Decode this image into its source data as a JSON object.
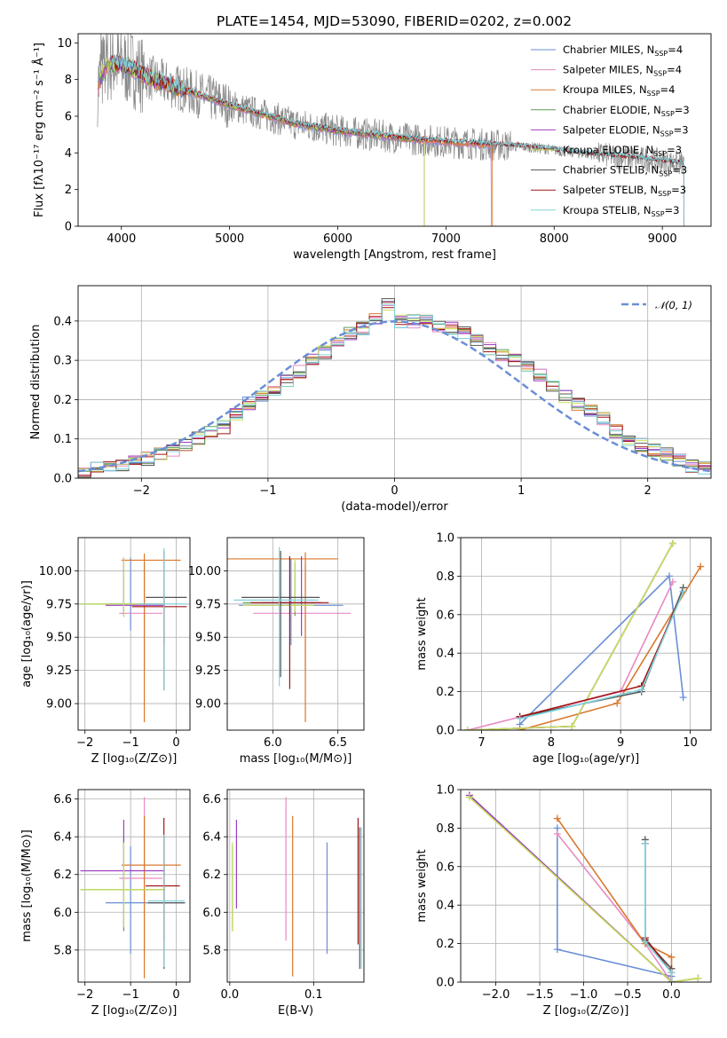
{
  "figure_title": "PLATE=1454, MJD=53090, FIBERID=0202, z=0.002",
  "colors": {
    "c1": "#6a8fd6",
    "c2": "#e78ac3",
    "c3": "#d9782d",
    "c4": "#5f9e57",
    "c5": "#9d3fc1",
    "c6": "#c9e05a",
    "c7": "#555555",
    "c8": "#a31414",
    "c9": "#7fd3dc",
    "data": "#888888"
  },
  "chart_data": [
    {
      "id": "spectrum",
      "type": "line",
      "title": "PLATE=1454, MJD=53090, FIBERID=0202, z=0.002",
      "xlabel": "wavelength [Angstrom, rest frame]",
      "ylabel": "Flux [fλ10⁻¹⁷ erg cm⁻² s⁻¹ Å⁻¹]",
      "xlim": [
        3600,
        9450
      ],
      "ylim": [
        0,
        10.5
      ],
      "xticks": [
        4000,
        5000,
        6000,
        7000,
        8000,
        9000
      ],
      "yticks": [
        0,
        2,
        4,
        6,
        8,
        10
      ],
      "legend_position": "top-right",
      "legend": [
        {
          "label": "Chabrier MILES, N",
          "sub": "SSP",
          "suffix": "=4",
          "color": "c1"
        },
        {
          "label": "Salpeter MILES, N",
          "sub": "SSP",
          "suffix": "=4",
          "color": "c2"
        },
        {
          "label": "Kroupa MILES, N",
          "sub": "SSP",
          "suffix": "=4",
          "color": "c3"
        },
        {
          "label": "Chabrier ELODIE, N",
          "sub": "SSP",
          "suffix": "=3",
          "color": "c4"
        },
        {
          "label": "Salpeter ELODIE, N",
          "sub": "SSP",
          "suffix": "=3",
          "color": "c5"
        },
        {
          "label": "Kroupa ELODIE, N",
          "sub": "SSP",
          "suffix": "=3",
          "color": "c6"
        },
        {
          "label": "Chabrier STELIB, N",
          "sub": "SSP",
          "suffix": "=3",
          "color": "c7"
        },
        {
          "label": "Salpeter STELIB, N",
          "sub": "SSP",
          "suffix": "=3",
          "color": "c8"
        },
        {
          "label": "Kroupa STELIB, N",
          "sub": "SSP",
          "suffix": "=3",
          "color": "c9"
        }
      ],
      "continuum": [
        [
          3780,
          7.6
        ],
        [
          3850,
          8.8
        ],
        [
          3950,
          8.9
        ],
        [
          4100,
          8.6
        ],
        [
          4300,
          8.0
        ],
        [
          4500,
          7.6
        ],
        [
          4800,
          7.0
        ],
        [
          5000,
          6.6
        ],
        [
          5300,
          6.1
        ],
        [
          5600,
          5.6
        ],
        [
          6000,
          5.2
        ],
        [
          6300,
          5.0
        ],
        [
          6600,
          4.8
        ],
        [
          7000,
          4.6
        ],
        [
          7400,
          4.45
        ],
        [
          7800,
          4.3
        ],
        [
          8200,
          4.0
        ],
        [
          8600,
          3.8
        ],
        [
          9000,
          3.55
        ],
        [
          9200,
          3.4
        ]
      ],
      "model_ranges": [
        {
          "color": "c1",
          "x": [
            3780,
            7420
          ]
        },
        {
          "color": "c2",
          "x": [
            3780,
            7420
          ]
        },
        {
          "color": "c3",
          "x": [
            3780,
            7430
          ]
        },
        {
          "color": "c4",
          "x": [
            3800,
            6800
          ]
        },
        {
          "color": "c5",
          "x": [
            3800,
            6800
          ]
        },
        {
          "color": "c6",
          "x": [
            3800,
            6800
          ]
        },
        {
          "color": "c7",
          "x": [
            3900,
            9200
          ]
        },
        {
          "color": "c8",
          "x": [
            3900,
            9200
          ]
        },
        {
          "color": "c9",
          "x": [
            3900,
            9200
          ]
        }
      ]
    },
    {
      "id": "residuals",
      "type": "step-histogram",
      "xlabel": "(data-model)/error",
      "ylabel": "Normed distribution",
      "xlim": [
        -2.5,
        2.5
      ],
      "ylim": [
        0,
        0.49
      ],
      "xticks": [
        -2,
        -1,
        0,
        1,
        2
      ],
      "yticks": [
        0.0,
        0.1,
        0.2,
        0.3,
        0.4
      ],
      "grid": true,
      "legend_position": "top-right",
      "gaussian_label": "𝒩(0, 1)",
      "profile": [
        0.02,
        0.025,
        0.03,
        0.035,
        0.04,
        0.05,
        0.06,
        0.07,
        0.085,
        0.1,
        0.12,
        0.13,
        0.16,
        0.19,
        0.21,
        0.22,
        0.25,
        0.27,
        0.3,
        0.32,
        0.35,
        0.37,
        0.38,
        0.41,
        0.44,
        0.4,
        0.4,
        0.4,
        0.39,
        0.38,
        0.37,
        0.35,
        0.33,
        0.31,
        0.3,
        0.28,
        0.26,
        0.23,
        0.21,
        0.19,
        0.17,
        0.15,
        0.12,
        0.1,
        0.085,
        0.07,
        0.06,
        0.045,
        0.03,
        0.025
      ]
    },
    {
      "id": "age-vs-Z",
      "type": "errorbar",
      "xlabel": "Z [log₁₀(Z/Z⊙)]",
      "ylabel": "age  [log₁₀(age/yr)]",
      "xlim": [
        -2.15,
        0.3
      ],
      "ylim": [
        8.8,
        10.25
      ],
      "xticks": [
        -2,
        -1,
        0
      ],
      "yticks": [
        9.0,
        9.25,
        9.5,
        9.75,
        10.0
      ],
      "points": [
        {
          "color": "c1",
          "x": -1.0,
          "y": 9.75,
          "xerr": [
            0.55,
            0.55
          ],
          "yerr": [
            0.2,
            0.35
          ]
        },
        {
          "color": "c2",
          "x": -0.7,
          "y": 9.68,
          "xerr": [
            0.55,
            0.4
          ],
          "yerr": [
            0.43,
            0.38
          ]
        },
        {
          "color": "c3",
          "x": -0.7,
          "y": 10.08,
          "xerr": [
            0.5,
            0.8
          ],
          "yerr": [
            1.22,
            0.05
          ]
        },
        {
          "color": "c4",
          "x": -1.15,
          "y": 9.75,
          "xerr": [
            0.95,
            0.9
          ],
          "yerr": [
            0.08,
            0.35
          ]
        },
        {
          "color": "c5",
          "x": -1.15,
          "y": 9.74,
          "xerr": [
            0.4,
            0.9
          ],
          "yerr": [
            0.08,
            0.36
          ]
        },
        {
          "color": "c6",
          "x": -1.15,
          "y": 9.75,
          "xerr": [
            0.95,
            0.9
          ],
          "yerr": [
            0.1,
            0.35
          ]
        },
        {
          "color": "c7",
          "x": -0.27,
          "y": 9.8,
          "xerr": [
            0.4,
            0.5
          ],
          "yerr": [
            0.7,
            0.35
          ]
        },
        {
          "color": "c8",
          "x": -0.27,
          "y": 9.73,
          "xerr": [
            0.7,
            0.5
          ],
          "yerr": [
            0.3,
            0.05
          ]
        },
        {
          "color": "c9",
          "x": -0.27,
          "y": 9.75,
          "xerr": [
            0.55,
            0.5
          ],
          "yerr": [
            0.65,
            0.42
          ]
        }
      ]
    },
    {
      "id": "age-vs-mass",
      "type": "errorbar",
      "xlabel": "mass [log₁₀(M/M⊙)]",
      "ylabel": "",
      "xlim": [
        5.65,
        6.7
      ],
      "ylim": [
        8.8,
        10.25
      ],
      "xticks": [
        6.0,
        6.5
      ],
      "yticks": [
        9.0,
        9.25,
        9.5,
        9.75,
        10.0
      ],
      "points": [
        {
          "color": "c1",
          "x": 6.14,
          "y": 9.74,
          "xerr": [
            0.4,
            0.4
          ],
          "yerr": [
            0.3,
            0.35
          ]
        },
        {
          "color": "c2",
          "x": 6.25,
          "y": 9.68,
          "xerr": [
            0.4,
            0.35
          ],
          "yerr": [
            0.43,
            0.38
          ]
        },
        {
          "color": "c3",
          "x": 6.25,
          "y": 10.09,
          "xerr": [
            0.6,
            0.25
          ],
          "yerr": [
            1.23,
            0.05
          ]
        },
        {
          "color": "c4",
          "x": 6.17,
          "y": 9.76,
          "xerr": [
            0.4,
            0.15
          ],
          "yerr": [
            0.1,
            0.3
          ]
        },
        {
          "color": "c5",
          "x": 6.22,
          "y": 9.76,
          "xerr": [
            0.3,
            0.15
          ],
          "yerr": [
            0.25,
            0.35
          ]
        },
        {
          "color": "c6",
          "x": 6.17,
          "y": 9.74,
          "xerr": [
            0.4,
            0.15
          ],
          "yerr": [
            0.05,
            0.35
          ]
        },
        {
          "color": "c7",
          "x": 6.06,
          "y": 9.8,
          "xerr": [
            0.3,
            0.3
          ],
          "yerr": [
            0.6,
            0.35
          ]
        },
        {
          "color": "c8",
          "x": 6.13,
          "y": 9.76,
          "xerr": [
            0.3,
            0.3
          ],
          "yerr": [
            0.65,
            0.35
          ]
        },
        {
          "color": "c9",
          "x": 6.05,
          "y": 9.78,
          "xerr": [
            0.35,
            0.3
          ],
          "yerr": [
            0.65,
            0.4
          ]
        }
      ]
    },
    {
      "id": "massweight-vs-age",
      "type": "line",
      "xlabel": "age  [log₁₀(age/yr)]",
      "ylabel": "mass weight",
      "xlim": [
        6.7,
        10.3
      ],
      "ylim": [
        0,
        1.0
      ],
      "xticks": [
        7,
        8,
        9,
        10
      ],
      "yticks": [
        0.0,
        0.2,
        0.4,
        0.6,
        0.8,
        1.0
      ],
      "grid": true,
      "series": [
        {
          "color": "c1",
          "x": [
            7.55,
            9.7,
            9.9
          ],
          "y": [
            0.03,
            0.8,
            0.17
          ]
        },
        {
          "color": "c2",
          "x": [
            6.8,
            9.0,
            9.75
          ],
          "y": [
            0.0,
            0.2,
            0.77
          ]
        },
        {
          "color": "c3",
          "x": [
            7.55,
            8.95,
            10.15
          ],
          "y": [
            0.0,
            0.14,
            0.85
          ]
        },
        {
          "color": "c4",
          "x": [
            6.8,
            8.3,
            9.75
          ],
          "y": [
            0.0,
            0.02,
            0.97
          ]
        },
        {
          "color": "c5",
          "x": [
            6.8,
            8.3,
            9.75
          ],
          "y": [
            0.0,
            0.02,
            0.97
          ]
        },
        {
          "color": "c6",
          "x": [
            6.8,
            8.3,
            9.75
          ],
          "y": [
            0.0,
            0.02,
            0.97
          ]
        },
        {
          "color": "c7",
          "x": [
            7.55,
            9.3,
            9.9
          ],
          "y": [
            0.07,
            0.2,
            0.74
          ]
        },
        {
          "color": "c8",
          "x": [
            7.55,
            9.3,
            9.9
          ],
          "y": [
            0.07,
            0.23,
            0.72
          ]
        },
        {
          "color": "c9",
          "x": [
            7.55,
            9.3,
            9.9
          ],
          "y": [
            0.06,
            0.21,
            0.72
          ]
        }
      ]
    },
    {
      "id": "mass-vs-Z",
      "type": "errorbar",
      "xlabel": "Z [log₁₀(Z/Z⊙)]",
      "ylabel": "mass [log₁₀(M/M⊙)]",
      "xlim": [
        -2.15,
        0.3
      ],
      "ylim": [
        5.63,
        6.65
      ],
      "xticks": [
        -2,
        -1,
        0
      ],
      "yticks": [
        5.8,
        6.0,
        6.2,
        6.4,
        6.6
      ],
      "points": [
        {
          "color": "c1",
          "x": -1.0,
          "y": 6.05,
          "xerr": [
            0.55,
            1.2
          ],
          "yerr": [
            0.27,
            0.3
          ]
        },
        {
          "color": "c2",
          "x": -0.7,
          "y": 6.18,
          "xerr": [
            0.55,
            0.4
          ],
          "yerr": [
            0.4,
            0.43
          ]
        },
        {
          "color": "c3",
          "x": -0.7,
          "y": 6.25,
          "xerr": [
            0.5,
            0.8
          ],
          "yerr": [
            0.6,
            0.26
          ]
        },
        {
          "color": "c4",
          "x": -1.15,
          "y": 6.12,
          "xerr": [
            0.95,
            0.9
          ],
          "yerr": [
            0.22,
            0.28
          ]
        },
        {
          "color": "c5",
          "x": -1.15,
          "y": 6.22,
          "xerr": [
            0.95,
            0.9
          ],
          "yerr": [
            0.3,
            0.27
          ]
        },
        {
          "color": "c6",
          "x": -1.15,
          "y": 6.12,
          "xerr": [
            0.95,
            0.9
          ],
          "yerr": [
            0.2,
            0.25
          ]
        },
        {
          "color": "c7",
          "x": -0.27,
          "y": 6.05,
          "xerr": [
            0.35,
            0.45
          ],
          "yerr": [
            0.35,
            0.35
          ]
        },
        {
          "color": "c8",
          "x": -0.27,
          "y": 6.14,
          "xerr": [
            0.4,
            0.35
          ],
          "yerr": [
            0.3,
            0.36
          ]
        },
        {
          "color": "c9",
          "x": -0.27,
          "y": 6.06,
          "xerr": [
            0.35,
            0.45
          ],
          "yerr": [
            0.35,
            0.35
          ]
        }
      ]
    },
    {
      "id": "mass-vs-ebv",
      "type": "errorbar",
      "xlabel": "E(B-V)",
      "ylabel": "",
      "xlim": [
        -0.003,
        0.16
      ],
      "ylim": [
        5.63,
        6.65
      ],
      "xticks": [
        0.0,
        0.1
      ],
      "yticks": [
        5.8,
        6.0,
        6.2,
        6.4,
        6.6
      ],
      "points": [
        {
          "color": "c1",
          "x": 0.116,
          "y": 6.05,
          "xerr": [
            0,
            0
          ],
          "yerr": [
            0.27,
            0.32
          ]
        },
        {
          "color": "c2",
          "x": 0.067,
          "y": 6.2,
          "xerr": [
            0,
            0
          ],
          "yerr": [
            0.35,
            0.41
          ]
        },
        {
          "color": "c3",
          "x": 0.075,
          "y": 6.1,
          "xerr": [
            0,
            0
          ],
          "yerr": [
            0.44,
            0.41
          ]
        },
        {
          "color": "c4",
          "x": 0.003,
          "y": 6.15,
          "xerr": [
            0,
            0
          ],
          "yerr": [
            0.25,
            0.2
          ]
        },
        {
          "color": "c5",
          "x": 0.008,
          "y": 6.25,
          "xerr": [
            0,
            0
          ],
          "yerr": [
            0.23,
            0.24
          ]
        },
        {
          "color": "c6",
          "x": 0.003,
          "y": 6.12,
          "xerr": [
            0,
            0
          ],
          "yerr": [
            0.22,
            0.25
          ]
        },
        {
          "color": "c7",
          "x": 0.155,
          "y": 6.05,
          "xerr": [
            0,
            0
          ],
          "yerr": [
            0.35,
            0.4
          ]
        },
        {
          "color": "c8",
          "x": 0.153,
          "y": 6.17,
          "xerr": [
            0,
            0
          ],
          "yerr": [
            0.34,
            0.33
          ]
        },
        {
          "color": "c9",
          "x": 0.157,
          "y": 6.05,
          "xerr": [
            0,
            0
          ],
          "yerr": [
            0.35,
            0.4
          ]
        }
      ]
    },
    {
      "id": "massweight-vs-Z",
      "type": "line",
      "xlabel": "Z [log₁₀(Z/Z⊙)]",
      "ylabel": "mass weight",
      "xlim": [
        -2.4,
        0.45
      ],
      "ylim": [
        0,
        1.0
      ],
      "xticks": [
        -2.0,
        -1.5,
        -1.0,
        -0.5,
        0.0
      ],
      "yticks": [
        0.0,
        0.2,
        0.4,
        0.6,
        0.8,
        1.0
      ],
      "grid": true,
      "series": [
        {
          "color": "c1",
          "x": [
            -1.3,
            -1.3,
            0.0,
            0.0
          ],
          "y": [
            0.8,
            0.17,
            0.03,
            0.0
          ]
        },
        {
          "color": "c2",
          "x": [
            -1.3,
            -0.3,
            0.0
          ],
          "y": [
            0.77,
            0.2,
            0.0
          ]
        },
        {
          "color": "c3",
          "x": [
            -1.3,
            -0.3,
            0.0,
            0.0
          ],
          "y": [
            0.85,
            0.2,
            0.13,
            0.0
          ]
        },
        {
          "color": "c4",
          "x": [
            -2.3,
            0.0,
            0.3
          ],
          "y": [
            0.97,
            0.0,
            0.02
          ]
        },
        {
          "color": "c5",
          "x": [
            -2.3,
            0.0,
            0.3
          ],
          "y": [
            0.97,
            0.0,
            0.02
          ]
        },
        {
          "color": "c6",
          "x": [
            -2.3,
            0.0,
            0.3
          ],
          "y": [
            0.96,
            0.0,
            0.02
          ]
        },
        {
          "color": "c7",
          "x": [
            -0.3,
            -0.3,
            0.0,
            0.0
          ],
          "y": [
            0.74,
            0.22,
            0.07,
            0.0
          ]
        },
        {
          "color": "c8",
          "x": [
            -0.3,
            -0.3,
            0.0,
            0.0
          ],
          "y": [
            0.72,
            0.23,
            0.05,
            0.0
          ]
        },
        {
          "color": "c9",
          "x": [
            -0.3,
            -0.3,
            0.0,
            0.0
          ],
          "y": [
            0.72,
            0.21,
            0.05,
            0.0
          ]
        }
      ]
    }
  ]
}
